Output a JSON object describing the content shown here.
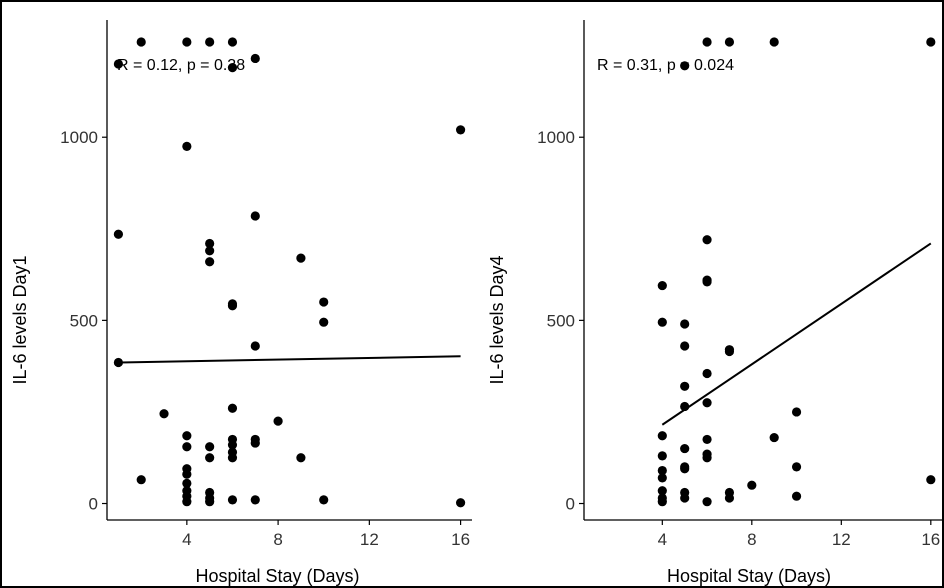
{
  "chart_data": [
    {
      "type": "scatter",
      "xlabel": "Hospital Stay (Days)",
      "ylabel": "IL-6 levels Day1",
      "annotation": "R = 0.12, p = 0.38",
      "xlim": [
        0.5,
        16.5
      ],
      "ylim": [
        -45,
        1320
      ],
      "xticks": [
        4,
        8,
        12,
        16
      ],
      "yticks": [
        0,
        500,
        1000
      ],
      "grid": false,
      "points": [
        [
          1,
          1200
        ],
        [
          2,
          1260
        ],
        [
          4,
          1260
        ],
        [
          5,
          1260
        ],
        [
          6,
          1260
        ],
        [
          6,
          1190
        ],
        [
          7,
          1215
        ],
        [
          4,
          975
        ],
        [
          16,
          1020
        ],
        [
          1,
          735
        ],
        [
          7,
          785
        ],
        [
          5,
          710
        ],
        [
          5,
          690
        ],
        [
          5,
          660
        ],
        [
          9,
          670
        ],
        [
          6,
          545
        ],
        [
          6,
          540
        ],
        [
          10,
          550
        ],
        [
          10,
          495
        ],
        [
          7,
          430
        ],
        [
          1,
          385
        ],
        [
          3,
          245
        ],
        [
          6,
          260
        ],
        [
          8,
          225
        ],
        [
          4,
          185
        ],
        [
          4,
          155
        ],
        [
          5,
          155
        ],
        [
          6,
          175
        ],
        [
          6,
          160
        ],
        [
          7,
          175
        ],
        [
          7,
          165
        ],
        [
          6,
          140
        ],
        [
          5,
          125
        ],
        [
          6,
          125
        ],
        [
          9,
          125
        ],
        [
          4,
          95
        ],
        [
          4,
          80
        ],
        [
          2,
          65
        ],
        [
          4,
          55
        ],
        [
          4,
          35
        ],
        [
          5,
          30
        ],
        [
          4,
          20
        ],
        [
          5,
          15
        ],
        [
          4,
          5
        ],
        [
          5,
          5
        ],
        [
          6,
          10
        ],
        [
          7,
          10
        ],
        [
          10,
          10
        ],
        [
          16,
          2
        ]
      ],
      "fit_line": {
        "x": [
          1,
          16
        ],
        "y": [
          385,
          402
        ]
      }
    },
    {
      "type": "scatter",
      "xlabel": "Hospital Stay (Days)",
      "ylabel": "IL-6 levels Day4",
      "annotation": "R = 0.31, p = 0.024",
      "xlim": [
        0.5,
        16.5
      ],
      "ylim": [
        -45,
        1320
      ],
      "xticks": [
        4,
        8,
        12,
        16
      ],
      "yticks": [
        0,
        500,
        1000
      ],
      "grid": false,
      "points": [
        [
          5,
          1195
        ],
        [
          6,
          1260
        ],
        [
          7,
          1260
        ],
        [
          9,
          1260
        ],
        [
          16,
          1260
        ],
        [
          6,
          720
        ],
        [
          6,
          610
        ],
        [
          6,
          605
        ],
        [
          4,
          595
        ],
        [
          4,
          495
        ],
        [
          5,
          490
        ],
        [
          5,
          430
        ],
        [
          7,
          420
        ],
        [
          7,
          415
        ],
        [
          6,
          355
        ],
        [
          5,
          320
        ],
        [
          6,
          275
        ],
        [
          5,
          265
        ],
        [
          10,
          250
        ],
        [
          4,
          185
        ],
        [
          6,
          175
        ],
        [
          9,
          180
        ],
        [
          5,
          150
        ],
        [
          6,
          135
        ],
        [
          6,
          125
        ],
        [
          4,
          130
        ],
        [
          5,
          100
        ],
        [
          5,
          95
        ],
        [
          10,
          100
        ],
        [
          4,
          90
        ],
        [
          4,
          70
        ],
        [
          8,
          50
        ],
        [
          4,
          35
        ],
        [
          5,
          30
        ],
        [
          7,
          30
        ],
        [
          10,
          20
        ],
        [
          4,
          15
        ],
        [
          5,
          15
        ],
        [
          7,
          15
        ],
        [
          4,
          5
        ],
        [
          6,
          5
        ],
        [
          16,
          65
        ]
      ],
      "fit_line": {
        "x": [
          4,
          16
        ],
        "y": [
          215,
          710
        ]
      }
    }
  ]
}
